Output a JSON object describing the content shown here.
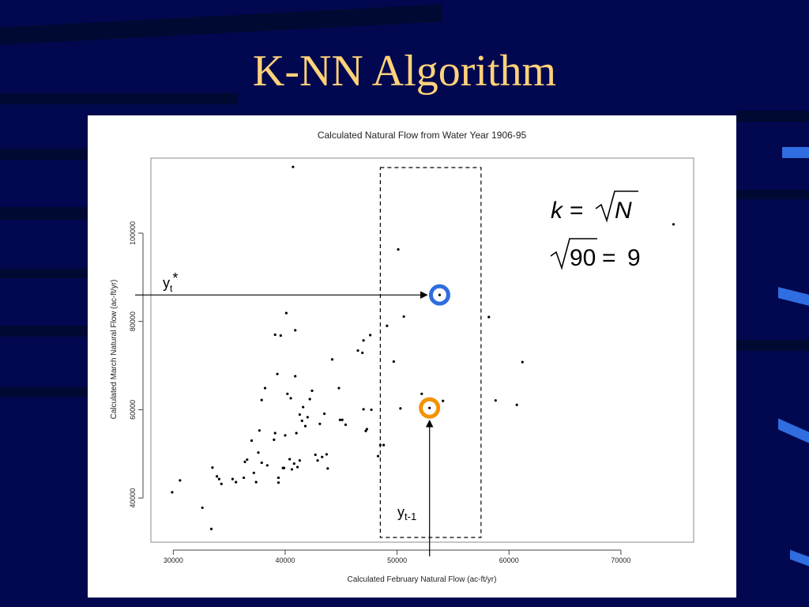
{
  "slide": {
    "title": "K-NN Algorithm"
  },
  "formula": {
    "line1_lhs": "k",
    "line1_eq": "=",
    "line1_rad": "N",
    "line2_rad": "90",
    "line2_eq": "=",
    "line2_rhs": "9"
  },
  "annotations": {
    "target_label_base": "y",
    "target_label_sub": "t",
    "target_label_sup": "*",
    "input_label_base": "y",
    "input_label_sub": "t-1"
  },
  "colors": {
    "background": "#02084f",
    "title": "#ffd27a",
    "target_ring": "#2f6de0",
    "input_ring": "#f39200"
  },
  "chart_data": {
    "type": "scatter",
    "title": "Calculated Natural Flow from Water Year 1906-95",
    "xlabel": "Calculated February Natural Flow (ac-ft/yr)",
    "ylabel": "Calculated March Natural Flow (ac-ft/yr)",
    "xlim": [
      28000,
      76500
    ],
    "ylim": [
      30000,
      117000
    ],
    "x_ticks": [
      30000,
      40000,
      50000,
      60000,
      70000
    ],
    "y_ticks": [
      40000,
      60000,
      80000,
      100000
    ],
    "grid": false,
    "neighborhood_x": [
      48500,
      57500
    ],
    "target_point": [
      53800,
      86000
    ],
    "input_point": [
      52900,
      60400
    ],
    "points": [
      [
        29900,
        41300
      ],
      [
        30600,
        44000
      ],
      [
        32600,
        37800
      ],
      [
        33400,
        33000
      ],
      [
        33500,
        46900
      ],
      [
        33900,
        44900
      ],
      [
        34100,
        44300
      ],
      [
        34300,
        43200
      ],
      [
        35300,
        44300
      ],
      [
        35600,
        43600
      ],
      [
        36300,
        44600
      ],
      [
        36400,
        48200
      ],
      [
        36600,
        48700
      ],
      [
        37000,
        53000
      ],
      [
        37200,
        45700
      ],
      [
        37400,
        43600
      ],
      [
        37600,
        50300
      ],
      [
        37700,
        55300
      ],
      [
        37900,
        48000
      ],
      [
        37900,
        62200
      ],
      [
        38200,
        64900
      ],
      [
        38400,
        47400
      ],
      [
        39000,
        53200
      ],
      [
        39100,
        54700
      ],
      [
        39100,
        77000
      ],
      [
        39300,
        68100
      ],
      [
        39400,
        44600
      ],
      [
        39400,
        43500
      ],
      [
        39600,
        76800
      ],
      [
        39800,
        46800
      ],
      [
        39900,
        46800
      ],
      [
        40000,
        54200
      ],
      [
        40100,
        81900
      ],
      [
        40200,
        63600
      ],
      [
        40400,
        48800
      ],
      [
        40500,
        62600
      ],
      [
        40600,
        46500
      ],
      [
        40700,
        115000
      ],
      [
        40800,
        47800
      ],
      [
        40900,
        67600
      ],
      [
        40900,
        78000
      ],
      [
        41000,
        54700
      ],
      [
        41100,
        47000
      ],
      [
        41300,
        48500
      ],
      [
        41300,
        58900
      ],
      [
        41500,
        57500
      ],
      [
        41600,
        60600
      ],
      [
        41800,
        56300
      ],
      [
        42000,
        58300
      ],
      [
        42200,
        62400
      ],
      [
        42400,
        64300
      ],
      [
        42700,
        49800
      ],
      [
        42900,
        48500
      ],
      [
        43100,
        56800
      ],
      [
        43300,
        49300
      ],
      [
        43500,
        59100
      ],
      [
        43700,
        49900
      ],
      [
        43800,
        46700
      ],
      [
        44200,
        71400
      ],
      [
        44800,
        64900
      ],
      [
        44900,
        57700
      ],
      [
        45100,
        57700
      ],
      [
        45400,
        56600
      ],
      [
        46500,
        73400
      ],
      [
        46900,
        72900
      ],
      [
        47000,
        60100
      ],
      [
        47000,
        75700
      ],
      [
        47200,
        55200
      ],
      [
        47300,
        55600
      ],
      [
        47600,
        76900
      ],
      [
        47700,
        60000
      ],
      [
        48300,
        49500
      ],
      [
        48500,
        52000
      ],
      [
        48800,
        52000
      ],
      [
        49100,
        79000
      ],
      [
        49700,
        70900
      ],
      [
        50100,
        96300
      ],
      [
        50300,
        60300
      ],
      [
        50600,
        81100
      ],
      [
        52200,
        63600
      ],
      [
        54100,
        62000
      ],
      [
        58200,
        81000
      ],
      [
        58800,
        62100
      ],
      [
        60700,
        61100
      ],
      [
        61200,
        70800
      ],
      [
        74700,
        102000
      ]
    ]
  }
}
